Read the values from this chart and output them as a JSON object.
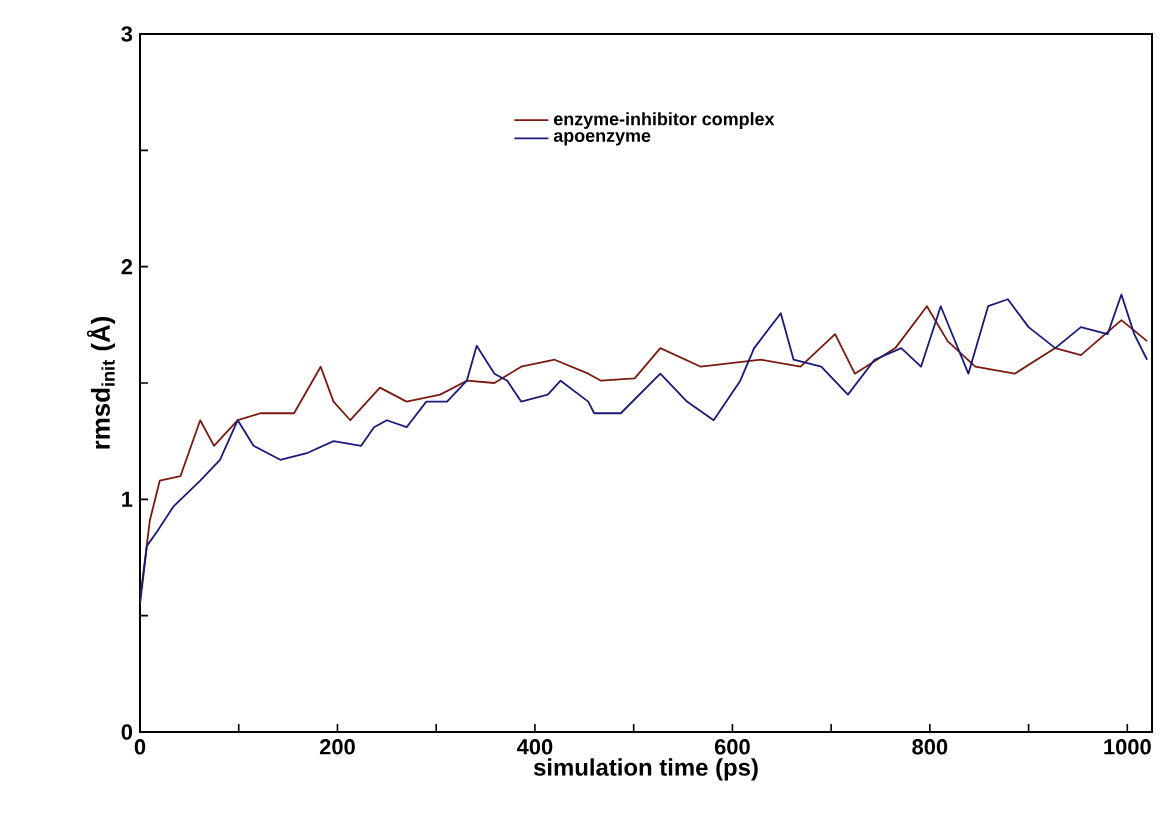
{
  "chart_data": {
    "type": "line",
    "xlabel": "simulation time (ps)",
    "ylabel": "rmsd$_{init}$ (Å)",
    "xlim": [
      0,
      1025
    ],
    "ylim": [
      0,
      3
    ],
    "xticks": [
      0,
      {
        "value": 100,
        "label": null
      },
      200,
      {
        "value": 300,
        "label": null
      },
      400,
      {
        "value": 500,
        "label": null
      },
      600,
      {
        "value": 700,
        "label": null
      },
      800,
      {
        "value": 900,
        "label": null
      },
      1000
    ],
    "yticks": [
      0,
      {
        "value": 0.5,
        "label": null
      },
      1,
      {
        "value": 1.5,
        "label": null
      },
      2,
      {
        "value": 2.5,
        "label": null
      },
      3
    ],
    "legend": "top",
    "grid": false,
    "series": [
      {
        "name": "enzyme-inhibitor complex",
        "color": "#7a1a10",
        "x": [
          0,
          10,
          20,
          41,
          61,
          75,
          99,
          122,
          156,
          183,
          196,
          213,
          243,
          270,
          304,
          331,
          359,
          386,
          420,
          454,
          467,
          501,
          527,
          568,
          629,
          669,
          704,
          724,
          765,
          797,
          818,
          846,
          886,
          927,
          953,
          994,
          1020
        ],
        "values": [
          0.57,
          0.91,
          1.08,
          1.1,
          1.34,
          1.23,
          1.34,
          1.37,
          1.37,
          1.57,
          1.42,
          1.34,
          1.48,
          1.42,
          1.45,
          1.51,
          1.5,
          1.57,
          1.6,
          1.54,
          1.51,
          1.52,
          1.65,
          1.57,
          1.6,
          1.57,
          1.71,
          1.54,
          1.65,
          1.83,
          1.68,
          1.57,
          1.54,
          1.65,
          1.62,
          1.77,
          1.68
        ]
      },
      {
        "name": "apoenzyme",
        "color": "#1a1a7a",
        "x": [
          0,
          7,
          17,
          34,
          61,
          81,
          99,
          115,
          142,
          170,
          196,
          224,
          237,
          250,
          270,
          290,
          311,
          331,
          341,
          359,
          372,
          386,
          413,
          426,
          454,
          460,
          487,
          527,
          554,
          581,
          608,
          622,
          649,
          662,
          690,
          717,
          744,
          771,
          791,
          811,
          839,
          859,
          879,
          900,
          927,
          953,
          980,
          994,
          1007,
          1020
        ],
        "values": [
          0.55,
          0.8,
          0.86,
          0.97,
          1.08,
          1.17,
          1.34,
          1.23,
          1.17,
          1.2,
          1.25,
          1.23,
          1.31,
          1.34,
          1.31,
          1.42,
          1.42,
          1.51,
          1.66,
          1.54,
          1.51,
          1.42,
          1.45,
          1.51,
          1.42,
          1.37,
          1.37,
          1.54,
          1.42,
          1.34,
          1.51,
          1.65,
          1.8,
          1.6,
          1.57,
          1.45,
          1.6,
          1.65,
          1.57,
          1.83,
          1.54,
          1.83,
          1.86,
          1.74,
          1.65,
          1.74,
          1.71,
          1.88,
          1.71,
          1.6
        ]
      }
    ]
  }
}
